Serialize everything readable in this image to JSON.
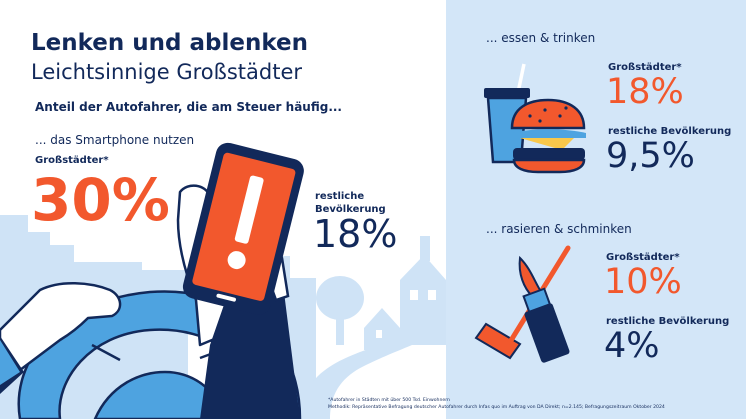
{
  "title": {
    "line1": "Lenken und ablenken",
    "line2": "Leichtsinnige Großstädter"
  },
  "subtitle": "Anteil der Autofahrer, die am Steuer häufig...",
  "smartphone": {
    "heading": "... das Smartphone nutzen",
    "group1_label": "Großstädter*",
    "group1_value": "30%",
    "group2_label_line1": "restliche",
    "group2_label_line2": "Bevölkerung",
    "group2_value": "18%"
  },
  "eating": {
    "heading": "... essen & trinken",
    "group1_label": "Großstädter*",
    "group1_value": "18%",
    "group2_label": "restliche Bevölkerung",
    "group2_value": "9,5%"
  },
  "shaving": {
    "heading": "... rasieren & schminken",
    "group1_label": "Großstädter*",
    "group1_value": "10%",
    "group2_label": "restliche Bevölkerung",
    "group2_value": "4%"
  },
  "footnote": {
    "line1": "*Autofahrer in Städten mit über 500 Tsd. Einwohnern",
    "line2": "Methodik: Repräsentative Befragung deutscher Autofahrer durch Infas quo im Auftrag von DA Direkt; n=2.145; Befragungszeitraum Oktober 2024"
  },
  "colors": {
    "navy": "#12295a",
    "orange": "#f2582d",
    "light_blue": "#d3e6f8",
    "mid_blue": "#bcd7f2",
    "wheel_blue": "#4ea3e0"
  }
}
